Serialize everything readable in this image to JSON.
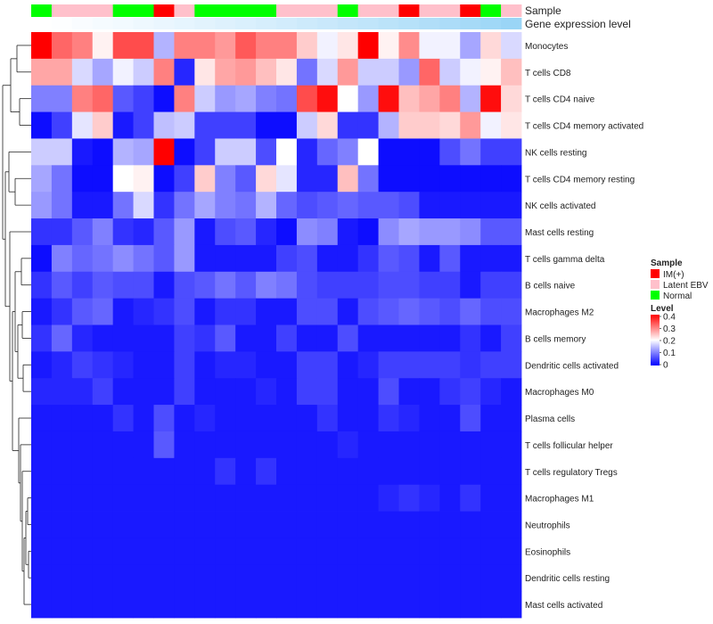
{
  "chart_data": {
    "type": "heatmap",
    "title": "",
    "annotation_tracks": [
      {
        "label": "Sample"
      },
      {
        "label": "Gene expression level"
      }
    ],
    "sample_groups": [
      "Normal",
      "Latent EBV",
      "Latent EBV",
      "Latent EBV",
      "Normal",
      "Normal",
      "IM(+)",
      "Latent EBV",
      "Normal",
      "Normal",
      "Normal",
      "Normal",
      "Latent EBV",
      "Latent EBV",
      "Latent EBV",
      "Normal",
      "Latent EBV",
      "Latent EBV",
      "IM(+)",
      "Latent EBV",
      "Latent EBV",
      "IM(+)",
      "Normal",
      "Latent EBV"
    ],
    "expression_level_colors": [
      "#ffffff",
      "#fdfeff",
      "#f9fcff",
      "#f5fbff",
      "#f2faff",
      "#eef8fe",
      "#eaf6fe",
      "#e6f5fe",
      "#e2f3fd",
      "#def1fd",
      "#daf0fd",
      "#d6eefc",
      "#d2ecfc",
      "#cdeafb",
      "#c9e8fb",
      "#c4e6fa",
      "#c0e5fa",
      "#bbe3f9",
      "#b6e1f9",
      "#b1def8",
      "#acdcf8",
      "#a6daf7",
      "#a0d8f7",
      "#9ad5f6"
    ],
    "rows": [
      "Monocytes",
      "T cells CD8",
      "T cells CD4 naive",
      "T cells CD4 memory activated",
      "NK cells resting",
      "T cells CD4 memory resting",
      "NK cells activated",
      "Mast cells resting",
      "T cells gamma delta",
      "B cells naive",
      "Macrophages M2",
      "B cells memory",
      "Dendritic cells activated",
      "Macrophages M0",
      "Plasma cells",
      "T cells follicular helper",
      "T cells regulatory  Tregs",
      "Macrophages M1",
      "Neutrophils",
      "Eosinophils",
      "Dendritic cells resting",
      "Mast cells activated"
    ],
    "values": [
      [
        0.4,
        0.32,
        0.3,
        0.21,
        0.34,
        0.34,
        0.14,
        0.3,
        0.3,
        0.28,
        0.33,
        0.3,
        0.3,
        0.24,
        0.19,
        0.22,
        0.4,
        0.21,
        0.29,
        0.19,
        0.19,
        0.13,
        0.23,
        0.17
      ],
      [
        0.27,
        0.27,
        0.17,
        0.13,
        0.19,
        0.16,
        0.3,
        0.03,
        0.22,
        0.27,
        0.28,
        0.25,
        0.22,
        0.09,
        0.17,
        0.28,
        0.16,
        0.16,
        0.12,
        0.32,
        0.16,
        0.19,
        0.21,
        0.25
      ],
      [
        0.1,
        0.1,
        0.3,
        0.32,
        0.07,
        0.05,
        0.01,
        0.3,
        0.16,
        0.12,
        0.13,
        0.1,
        0.09,
        0.34,
        0.39,
        0.2,
        0.12,
        0.39,
        0.25,
        0.27,
        0.3,
        0.14,
        0.39,
        0.23
      ],
      [
        0.01,
        0.05,
        0.18,
        0.24,
        0.02,
        0.05,
        0.15,
        0.16,
        0.05,
        0.05,
        0.05,
        0.01,
        0.01,
        0.16,
        0.23,
        0.04,
        0.04,
        0.14,
        0.24,
        0.24,
        0.23,
        0.28,
        0.19,
        0.22
      ],
      [
        0.16,
        0.16,
        0.02,
        0.01,
        0.14,
        0.13,
        0.4,
        0.01,
        0.05,
        0.16,
        0.16,
        0.06,
        0.2,
        0.03,
        0.08,
        0.1,
        0.2,
        0.01,
        0.01,
        0.01,
        0.06,
        0.09,
        0.05,
        0.05
      ],
      [
        0.13,
        0.09,
        0.01,
        0.01,
        0.2,
        0.21,
        0.01,
        0.05,
        0.24,
        0.1,
        0.07,
        0.23,
        0.18,
        0.03,
        0.03,
        0.25,
        0.09,
        0.01,
        0.01,
        0.01,
        0.01,
        0.01,
        0.01,
        0.01
      ],
      [
        0.12,
        0.09,
        0.02,
        0.02,
        0.09,
        0.17,
        0.04,
        0.09,
        0.13,
        0.1,
        0.09,
        0.14,
        0.08,
        0.06,
        0.07,
        0.08,
        0.07,
        0.07,
        0.06,
        0.02,
        0.02,
        0.02,
        0.02,
        0.02
      ],
      [
        0.04,
        0.04,
        0.07,
        0.1,
        0.04,
        0.03,
        0.07,
        0.12,
        0.02,
        0.06,
        0.07,
        0.03,
        0.01,
        0.11,
        0.1,
        0.02,
        0.01,
        0.11,
        0.13,
        0.12,
        0.12,
        0.11,
        0.07,
        0.07
      ],
      [
        0.01,
        0.1,
        0.08,
        0.09,
        0.11,
        0.09,
        0.07,
        0.12,
        0.02,
        0.02,
        0.02,
        0.02,
        0.05,
        0.06,
        0.02,
        0.02,
        0.04,
        0.07,
        0.06,
        0.02,
        0.07,
        0.02,
        0.02,
        0.02
      ],
      [
        0.04,
        0.07,
        0.05,
        0.07,
        0.06,
        0.06,
        0.02,
        0.06,
        0.07,
        0.09,
        0.07,
        0.1,
        0.09,
        0.06,
        0.05,
        0.05,
        0.05,
        0.06,
        0.06,
        0.05,
        0.05,
        0.02,
        0.05,
        0.05
      ],
      [
        0.02,
        0.04,
        0.07,
        0.08,
        0.02,
        0.03,
        0.04,
        0.06,
        0.02,
        0.04,
        0.04,
        0.02,
        0.02,
        0.06,
        0.06,
        0.02,
        0.06,
        0.07,
        0.08,
        0.07,
        0.06,
        0.08,
        0.06,
        0.06
      ],
      [
        0.04,
        0.08,
        0.03,
        0.02,
        0.02,
        0.02,
        0.02,
        0.05,
        0.04,
        0.07,
        0.02,
        0.02,
        0.05,
        0.02,
        0.02,
        0.06,
        0.02,
        0.02,
        0.02,
        0.02,
        0.02,
        0.04,
        0.02,
        0.05
      ],
      [
        0.02,
        0.03,
        0.05,
        0.04,
        0.03,
        0.02,
        0.02,
        0.05,
        0.02,
        0.03,
        0.03,
        0.02,
        0.02,
        0.05,
        0.05,
        0.02,
        0.03,
        0.05,
        0.05,
        0.05,
        0.05,
        0.04,
        0.05,
        0.05
      ],
      [
        0.03,
        0.03,
        0.03,
        0.05,
        0.02,
        0.02,
        0.02,
        0.05,
        0.02,
        0.02,
        0.02,
        0.03,
        0.02,
        0.05,
        0.05,
        0.02,
        0.02,
        0.06,
        0.02,
        0.02,
        0.04,
        0.05,
        0.03,
        0.02
      ],
      [
        0.02,
        0.02,
        0.02,
        0.02,
        0.04,
        0.02,
        0.06,
        0.02,
        0.03,
        0.02,
        0.02,
        0.02,
        0.02,
        0.02,
        0.04,
        0.02,
        0.02,
        0.04,
        0.03,
        0.02,
        0.02,
        0.06,
        0.02,
        0.02
      ],
      [
        0.02,
        0.02,
        0.02,
        0.02,
        0.02,
        0.02,
        0.07,
        0.02,
        0.02,
        0.02,
        0.02,
        0.02,
        0.02,
        0.02,
        0.02,
        0.03,
        0.02,
        0.02,
        0.02,
        0.02,
        0.02,
        0.02,
        0.02,
        0.02
      ],
      [
        0.02,
        0.02,
        0.02,
        0.02,
        0.02,
        0.02,
        0.02,
        0.02,
        0.02,
        0.04,
        0.02,
        0.04,
        0.02,
        0.02,
        0.02,
        0.02,
        0.02,
        0.02,
        0.02,
        0.02,
        0.02,
        0.02,
        0.02,
        0.02
      ],
      [
        0.02,
        0.02,
        0.02,
        0.02,
        0.02,
        0.02,
        0.02,
        0.02,
        0.02,
        0.02,
        0.02,
        0.02,
        0.02,
        0.02,
        0.02,
        0.02,
        0.02,
        0.03,
        0.04,
        0.03,
        0.02,
        0.04,
        0.02,
        0.02
      ],
      [
        0.02,
        0.02,
        0.02,
        0.02,
        0.02,
        0.02,
        0.02,
        0.02,
        0.02,
        0.02,
        0.02,
        0.02,
        0.02,
        0.02,
        0.02,
        0.02,
        0.02,
        0.02,
        0.02,
        0.02,
        0.02,
        0.02,
        0.02,
        0.02
      ],
      [
        0.02,
        0.02,
        0.02,
        0.02,
        0.02,
        0.02,
        0.02,
        0.02,
        0.02,
        0.02,
        0.02,
        0.02,
        0.02,
        0.02,
        0.02,
        0.02,
        0.02,
        0.02,
        0.02,
        0.02,
        0.02,
        0.02,
        0.02,
        0.02
      ],
      [
        0.02,
        0.02,
        0.02,
        0.02,
        0.02,
        0.02,
        0.02,
        0.02,
        0.02,
        0.02,
        0.02,
        0.02,
        0.02,
        0.02,
        0.02,
        0.02,
        0.02,
        0.02,
        0.02,
        0.02,
        0.02,
        0.02,
        0.02,
        0.02
      ],
      [
        0.02,
        0.02,
        0.02,
        0.02,
        0.02,
        0.02,
        0.02,
        0.02,
        0.02,
        0.02,
        0.02,
        0.02,
        0.02,
        0.02,
        0.02,
        0.02,
        0.02,
        0.02,
        0.02,
        0.02,
        0.02,
        0.02,
        0.02,
        0.02
      ]
    ],
    "color_scale": {
      "min": 0,
      "max": 0.4,
      "low": "#0000ff",
      "mid": "#ffffff",
      "high": "#ff0000",
      "mid_value": 0.2
    },
    "legend": {
      "placement": "right",
      "sample_title": "Sample",
      "sample_entries": [
        {
          "label": "IM(+)",
          "color": "#ff0000"
        },
        {
          "label": "Latent EBV",
          "color": "#ffc0cb"
        },
        {
          "label": "Normal",
          "color": "#00ff00"
        }
      ],
      "level_title": "Level",
      "level_ticks": [
        "0.4",
        "0.3",
        "0.2",
        "0.1",
        "0"
      ]
    },
    "row_dendrogram": true
  }
}
